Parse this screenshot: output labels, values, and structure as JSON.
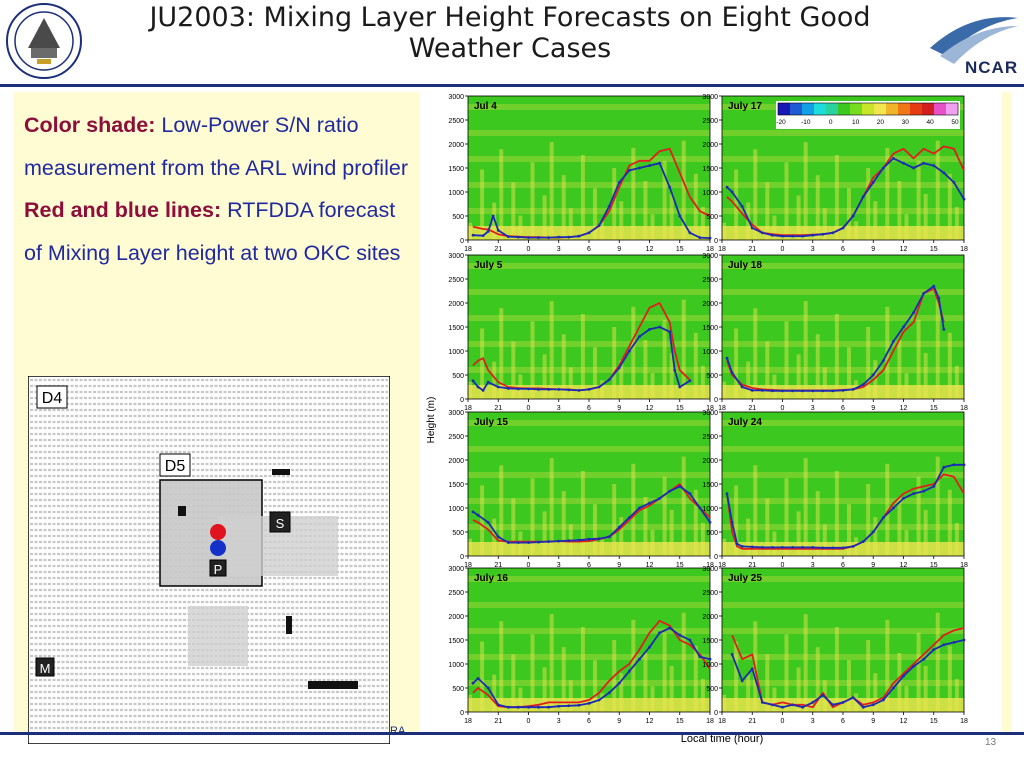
{
  "slide": {
    "title": "JU2003: Mixing Layer Height Forecasts on Eight Good Weather Cases",
    "logo_org": "ARMY TEST AND EVALUATION COMMAND",
    "ncar_label": "NCAR",
    "footer": "RA",
    "page_number": "13"
  },
  "caption": {
    "color_label": "Color shade:",
    "color_text": " Low-Power S/N ratio measurement from the ARL wind profiler",
    "lines_label": "Red and blue lines:",
    "lines_text": " RTFDDA forecast of Mixing Layer height at two OKC sites"
  },
  "domain_map": {
    "labels": [
      "D4",
      "D5",
      "S",
      "P",
      "M"
    ],
    "marker_colors": {
      "red": "#e0141e",
      "blue": "#1430c8"
    }
  },
  "colors": {
    "navy": "#1c2f7a",
    "caption_blue": "#1f2aa0",
    "caption_red": "#8b0f3a",
    "panel_bg": "#fffbd2",
    "field_green": "#3cc81e",
    "field_yellow": "#f0e650",
    "red_line": "#e01e1e",
    "blue_line": "#1c2ab4"
  },
  "chart_data": {
    "type": "line",
    "ylabel": "Height (m)",
    "xlabel": "Local time  (hour)",
    "xlim": [
      18,
      42
    ],
    "ylim": [
      0,
      3000
    ],
    "xtick_positions": [
      18,
      21,
      24,
      27,
      30,
      33,
      36,
      39,
      42
    ],
    "xtick_labels": [
      "18",
      "21",
      "0",
      "3",
      "6",
      "9",
      "12",
      "15",
      "18"
    ],
    "ytick_values": [
      0,
      500,
      1000,
      1500,
      2000,
      2500,
      3000
    ],
    "ytick_labels": [
      "0",
      "500",
      "1000",
      "1500",
      "2000",
      "2500",
      "3000"
    ],
    "colorbar": {
      "ticks": [
        "-20",
        "-10",
        "0",
        "10",
        "20",
        "30",
        "40",
        "50"
      ],
      "colors": [
        "#1818b4",
        "#1e5ad2",
        "#14a0e6",
        "#1edcdc",
        "#2ad2a0",
        "#3cc81e",
        "#78dc1e",
        "#c8e628",
        "#f0e650",
        "#f0b428",
        "#f07814",
        "#e63c14",
        "#d21e1e",
        "#e650c8",
        "#f0a0f0"
      ]
    },
    "panels": [
      {
        "title": "Jul 4",
        "series": [
          {
            "name": "red",
            "x": [
              18.5,
              19.5,
              20,
              21,
              22,
              23,
              24,
              25,
              26,
              27,
              28,
              29,
              30,
              31,
              32,
              33,
              34,
              35,
              36,
              37,
              38,
              39,
              40,
              41,
              42
            ],
            "y": [
              280,
              230,
              220,
              120,
              80,
              70,
              60,
              60,
              50,
              50,
              60,
              80,
              150,
              300,
              600,
              1100,
              1550,
              1650,
              1650,
              1850,
              1900,
              1400,
              900,
              600,
              500
            ]
          },
          {
            "name": "blue",
            "x": [
              18.5,
              19.5,
              20,
              20.5,
              21,
              22,
              23,
              24,
              25,
              26,
              27,
              28,
              29,
              30,
              31,
              32,
              33,
              34,
              35,
              36,
              37,
              38,
              39,
              40,
              41,
              42
            ],
            "y": [
              100,
              90,
              180,
              500,
              200,
              70,
              60,
              50,
              50,
              50,
              60,
              60,
              80,
              150,
              300,
              700,
              1200,
              1450,
              1500,
              1550,
              1600,
              1100,
              500,
              150,
              50,
              40
            ]
          }
        ]
      },
      {
        "title": "July 17",
        "colorbar": true,
        "series": [
          {
            "name": "red",
            "x": [
              18.5,
              19,
              20,
              21,
              22,
              23,
              24,
              25,
              26,
              27,
              28,
              29,
              30,
              31,
              32,
              33,
              34,
              35,
              36,
              37,
              38,
              39,
              40,
              41,
              42
            ],
            "y": [
              900,
              800,
              550,
              320,
              150,
              120,
              100,
              100,
              100,
              110,
              120,
              150,
              250,
              500,
              900,
              1300,
              1500,
              1800,
              1900,
              1700,
              1900,
              1800,
              1950,
              1900,
              1450
            ]
          },
          {
            "name": "blue",
            "x": [
              18.5,
              19,
              20,
              21,
              22,
              23,
              24,
              25,
              26,
              27,
              28,
              29,
              30,
              31,
              32,
              33,
              34,
              35,
              36,
              37,
              38,
              39,
              40,
              41,
              42
            ],
            "y": [
              1100,
              1000,
              700,
              250,
              150,
              100,
              80,
              80,
              80,
              100,
              120,
              150,
              250,
              500,
              900,
              1200,
              1500,
              1700,
              1600,
              1500,
              1600,
              1550,
              1400,
              1200,
              850
            ]
          }
        ]
      },
      {
        "title": "July 5",
        "series": [
          {
            "name": "red",
            "x": [
              18.5,
              19,
              19.5,
              20,
              21,
              22,
              23,
              24,
              25,
              26,
              27,
              28,
              29,
              30,
              31,
              32,
              33,
              34,
              35,
              36,
              37,
              38,
              38.5,
              39,
              40
            ],
            "y": [
              700,
              800,
              850,
              600,
              350,
              250,
              230,
              220,
              220,
              210,
              200,
              200,
              180,
              200,
              250,
              400,
              700,
              1100,
              1500,
              1900,
              2000,
              1600,
              1000,
              600,
              400
            ]
          },
          {
            "name": "blue",
            "x": [
              18.5,
              19,
              19.5,
              20,
              21,
              22,
              23,
              24,
              25,
              26,
              27,
              28,
              29,
              30,
              31,
              32,
              33,
              34,
              35,
              36,
              37,
              38,
              38.5,
              39,
              40
            ],
            "y": [
              380,
              250,
              180,
              350,
              250,
              220,
              210,
              210,
              200,
              200,
              200,
              190,
              180,
              200,
              250,
              400,
              650,
              1000,
              1300,
              1450,
              1500,
              1400,
              600,
              250,
              380
            ]
          }
        ]
      },
      {
        "title": "July 18",
        "series": [
          {
            "name": "red",
            "x": [
              18.5,
              19,
              20,
              21,
              22,
              23,
              24,
              25,
              26,
              27,
              28,
              29,
              30,
              31,
              32,
              33,
              34,
              35,
              36,
              37,
              38,
              39,
              39.5,
              40
            ],
            "y": [
              800,
              500,
              300,
              230,
              200,
              190,
              180,
              180,
              180,
              180,
              180,
              180,
              190,
              200,
              250,
              400,
              600,
              1000,
              1400,
              1600,
              2200,
              2300,
              2000,
              1600
            ]
          },
          {
            "name": "blue",
            "x": [
              18.5,
              19,
              20,
              21,
              22,
              23,
              24,
              25,
              26,
              27,
              28,
              29,
              30,
              31,
              32,
              33,
              34,
              35,
              36,
              37,
              38,
              39,
              39.5,
              40
            ],
            "y": [
              850,
              550,
              250,
              180,
              180,
              170,
              170,
              170,
              170,
              170,
              170,
              170,
              180,
              200,
              300,
              500,
              800,
              1200,
              1500,
              1800,
              2200,
              2350,
              2100,
              1450
            ]
          }
        ]
      },
      {
        "title": "July 15",
        "series": [
          {
            "name": "red",
            "x": [
              18.5,
              19,
              20,
              21,
              22,
              23,
              24,
              25,
              26,
              27,
              28,
              29,
              30,
              31,
              32,
              33,
              34,
              35,
              36,
              37,
              38,
              39,
              40,
              41,
              42
            ],
            "y": [
              750,
              700,
              550,
              320,
              300,
              300,
              300,
              300,
              300,
              310,
              300,
              300,
              310,
              350,
              400,
              550,
              750,
              950,
              1050,
              1200,
              1350,
              1500,
              1200,
              1000,
              800
            ]
          },
          {
            "name": "blue",
            "x": [
              18.5,
              19,
              20,
              21,
              22,
              23,
              24,
              25,
              26,
              27,
              28,
              29,
              30,
              31,
              32,
              33,
              34,
              35,
              36,
              37,
              38,
              39,
              40,
              41,
              42
            ],
            "y": [
              920,
              850,
              700,
              400,
              280,
              280,
              280,
              290,
              300,
              310,
              320,
              330,
              350,
              360,
              400,
              600,
              800,
              1000,
              1100,
              1200,
              1350,
              1450,
              1300,
              1000,
              700
            ]
          }
        ]
      },
      {
        "title": "July 24",
        "series": [
          {
            "name": "red",
            "x": [
              18.5,
              19,
              19.5,
              20,
              21,
              22,
              23,
              24,
              25,
              26,
              27,
              28,
              29,
              30,
              31,
              32,
              33,
              34,
              35,
              36,
              37,
              38,
              39,
              40,
              41,
              42
            ],
            "y": [
              1300,
              500,
              200,
              150,
              150,
              150,
              150,
              150,
              150,
              150,
              150,
              150,
              150,
              150,
              200,
              300,
              500,
              800,
              1100,
              1300,
              1400,
              1450,
              1500,
              1700,
              1650,
              1300
            ]
          },
          {
            "name": "blue",
            "x": [
              18.5,
              19,
              19.5,
              20,
              21,
              22,
              23,
              24,
              25,
              26,
              27,
              28,
              29,
              30,
              31,
              32,
              33,
              34,
              35,
              36,
              37,
              38,
              39,
              40,
              41,
              42
            ],
            "y": [
              1300,
              700,
              250,
              200,
              190,
              180,
              180,
              180,
              180,
              180,
              180,
              170,
              170,
              170,
              200,
              300,
              500,
              800,
              1000,
              1200,
              1300,
              1350,
              1450,
              1850,
              1900,
              1900
            ]
          }
        ]
      },
      {
        "title": "July 16",
        "series": [
          {
            "name": "red",
            "x": [
              18.5,
              19,
              20,
              21,
              22,
              23,
              24,
              25,
              26,
              27,
              28,
              29,
              30,
              31,
              32,
              33,
              34,
              35,
              36,
              37,
              38,
              39,
              40,
              41,
              42
            ],
            "y": [
              400,
              500,
              350,
              120,
              100,
              100,
              120,
              150,
              200,
              200,
              200,
              200,
              250,
              400,
              650,
              850,
              1000,
              1300,
              1650,
              1900,
              1800,
              1500,
              1400,
              1200,
              900
            ]
          },
          {
            "name": "blue",
            "x": [
              18.5,
              19,
              20,
              21,
              22,
              23,
              24,
              25,
              26,
              27,
              28,
              29,
              30,
              31,
              32,
              33,
              34,
              35,
              36,
              37,
              38,
              39,
              40,
              41,
              42
            ],
            "y": [
              600,
              700,
              500,
              150,
              100,
              100,
              100,
              100,
              100,
              120,
              130,
              140,
              180,
              250,
              400,
              600,
              850,
              1100,
              1350,
              1650,
              1750,
              1600,
              1500,
              1150,
              1100
            ]
          }
        ]
      },
      {
        "title": "July 25",
        "series": [
          {
            "name": "red",
            "x": [
              19,
              20,
              21,
              22,
              23,
              24,
              25,
              26,
              27,
              28,
              29,
              30,
              31,
              32,
              33,
              34,
              35,
              36,
              37,
              38,
              39,
              40,
              41,
              42
            ],
            "y": [
              1600,
              1100,
              1200,
              200,
              150,
              200,
              150,
              150,
              100,
              400,
              100,
              200,
              300,
              150,
              200,
              300,
              600,
              800,
              1000,
              1200,
              1400,
              1600,
              1700,
              1750
            ]
          },
          {
            "name": "blue",
            "x": [
              19,
              20,
              21,
              22,
              23,
              24,
              25,
              26,
              27,
              28,
              29,
              30,
              31,
              32,
              33,
              34,
              35,
              36,
              37,
              38,
              39,
              40,
              41,
              42
            ],
            "y": [
              1200,
              650,
              900,
              200,
              150,
              100,
              150,
              100,
              200,
              350,
              150,
              200,
              300,
              100,
              150,
              250,
              500,
              750,
              950,
              1100,
              1300,
              1400,
              1450,
              1500
            ]
          }
        ]
      }
    ]
  }
}
